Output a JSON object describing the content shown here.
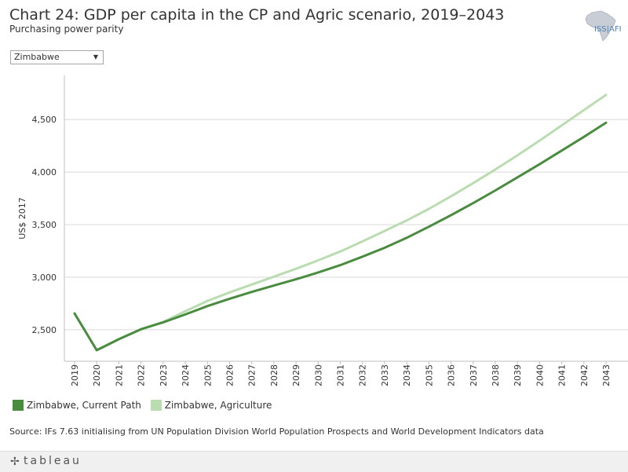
{
  "header": {
    "title": "Chart 24: GDP per capita in the CP and Agric scenario, 2019–2043",
    "subtitle": "Purchasing power parity",
    "logo_text": "ISS|AFI"
  },
  "filter": {
    "selected": "Zimbabwe"
  },
  "legend": {
    "items": [
      {
        "label": "Zimbabwe, Current Path",
        "color": "#4a8c3f"
      },
      {
        "label": "Zimbabwe, Agriculture",
        "color": "#b9dcb0"
      }
    ]
  },
  "source": "Source: IFs 7.63 initialising from UN Population Division World Population Prospects and World Development Indicators data",
  "footer": {
    "brand": "tableau"
  },
  "chart_data": {
    "type": "line",
    "ylabel": "US$ 2017",
    "ylim": [
      2200,
      4920
    ],
    "yticks": [
      2500,
      3000,
      3500,
      4000,
      4500
    ],
    "ytick_labels": [
      "2,500",
      "3,000",
      "3,500",
      "4,000",
      "4,500"
    ],
    "grid": true,
    "x": [
      2019,
      2020,
      2021,
      2022,
      2023,
      2024,
      2025,
      2026,
      2027,
      2028,
      2029,
      2030,
      2031,
      2032,
      2033,
      2034,
      2035,
      2036,
      2037,
      2038,
      2039,
      2040,
      2041,
      2042,
      2043
    ],
    "series": [
      {
        "name": "Zimbabwe, Current Path",
        "color": "#4a8c3f",
        "values": [
          2655,
          2305,
          2410,
          2505,
          2570,
          2645,
          2725,
          2795,
          2860,
          2920,
          2980,
          3045,
          3115,
          3195,
          3280,
          3375,
          3480,
          3590,
          3705,
          3825,
          3950,
          4075,
          4205,
          4335,
          4470
        ]
      },
      {
        "name": "Zimbabwe, Agriculture",
        "color": "#b9dcb0",
        "values": [
          2655,
          2305,
          2410,
          2505,
          2575,
          2675,
          2775,
          2855,
          2930,
          3005,
          3080,
          3160,
          3245,
          3340,
          3440,
          3540,
          3650,
          3770,
          3895,
          4025,
          4160,
          4300,
          4445,
          4590,
          4735
        ]
      }
    ]
  }
}
